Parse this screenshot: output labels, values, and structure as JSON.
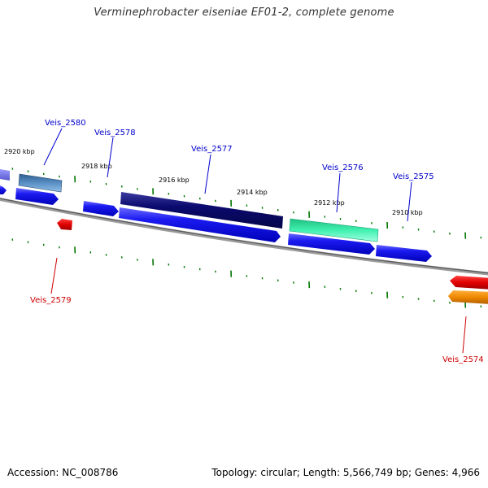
{
  "title": "Verminephrobacter eiseniae EF01-2, complete genome",
  "footer": {
    "accession": "Accession: NC_008786",
    "summary": "Topology: circular; Length: 5,566,749 bp; Genes: 4,966"
  },
  "ticks": [
    "2920 kbp",
    "2918 kbp",
    "2916 kbp",
    "2914 kbp",
    "2912 kbp",
    "2910 kbp"
  ],
  "gene_labels": [
    {
      "id": "Veis_2580",
      "color": "#0000cc"
    },
    {
      "id": "Veis_2578",
      "color": "#0000cc"
    },
    {
      "id": "Veis_2577",
      "color": "#0000cc"
    },
    {
      "id": "Veis_2576",
      "color": "#0000cc"
    },
    {
      "id": "Veis_2575",
      "color": "#0000cc"
    },
    {
      "id": "Veis_2579",
      "color": "#cc0000"
    },
    {
      "id": "Veis_2574",
      "color": "#cc0000"
    }
  ],
  "colors": {
    "forward_cds": "#1010ee",
    "navy_cds": "#0a0a6e",
    "steel_cds": "#4a7fb5",
    "green_cds": "#30e0a0",
    "reverse_cds": "#dd0000",
    "orange_cds": "#ee8800",
    "backbone": "#777777",
    "tick": "#007700"
  }
}
